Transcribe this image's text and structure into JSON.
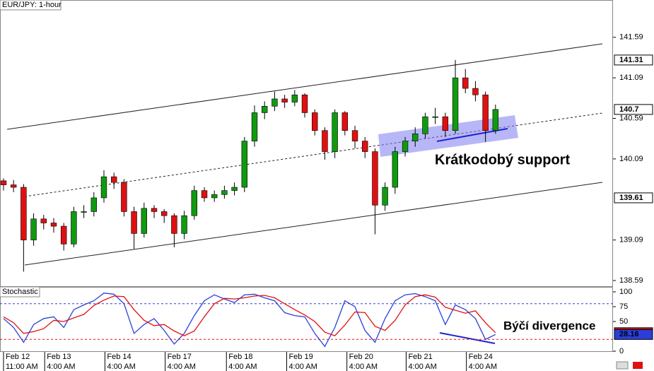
{
  "chart_data": [
    {
      "type": "candlestick",
      "title": "EUR/JPY: 1-hour",
      "open": [
        139.82,
        139.77,
        139.74,
        139.09,
        139.35,
        139.3,
        139.26,
        139.04,
        139.44,
        139.44,
        139.61,
        139.87,
        139.8,
        139.44,
        139.17,
        139.48,
        139.44,
        139.39,
        139.17,
        139.39,
        139.7,
        139.61,
        139.65,
        139.7,
        139.74,
        140.31,
        140.66,
        140.74,
        140.83,
        140.79,
        140.88,
        140.66,
        140.44,
        140.18,
        140.66,
        140.44,
        140.31,
        140.18,
        139.52,
        139.74,
        140.18,
        140.31,
        140.4,
        140.61,
        140.61,
        140.44,
        141.09,
        140.96,
        140.88,
        140.44
      ],
      "high": [
        139.85,
        139.83,
        139.78,
        139.42,
        139.4,
        139.36,
        139.3,
        139.5,
        139.52,
        139.68,
        139.95,
        139.92,
        139.84,
        139.5,
        139.55,
        139.52,
        139.47,
        139.42,
        139.45,
        139.76,
        139.74,
        139.7,
        139.76,
        139.8,
        140.36,
        140.75,
        140.8,
        140.92,
        140.88,
        140.94,
        140.9,
        140.7,
        140.48,
        140.7,
        140.68,
        140.5,
        140.36,
        140.22,
        139.8,
        140.24,
        140.36,
        140.48,
        140.66,
        140.72,
        140.66,
        141.31,
        141.2,
        141.05,
        140.92,
        140.76
      ],
      "low": [
        139.7,
        139.68,
        138.7,
        139.02,
        139.22,
        139.18,
        138.96,
        139.0,
        139.36,
        139.38,
        139.55,
        139.72,
        139.38,
        138.98,
        139.12,
        139.36,
        139.3,
        139.0,
        139.1,
        139.34,
        139.56,
        139.56,
        139.6,
        139.64,
        139.68,
        140.24,
        140.58,
        140.68,
        140.72,
        140.74,
        140.6,
        140.38,
        140.08,
        140.1,
        140.38,
        140.22,
        140.1,
        139.16,
        139.45,
        139.66,
        140.12,
        140.24,
        140.34,
        140.52,
        140.36,
        140.4,
        140.9,
        140.8,
        140.3,
        140.4
      ],
      "close": [
        139.77,
        139.74,
        139.09,
        139.35,
        139.3,
        139.26,
        139.04,
        139.44,
        139.44,
        139.61,
        139.87,
        139.8,
        139.44,
        139.17,
        139.48,
        139.44,
        139.39,
        139.17,
        139.39,
        139.7,
        139.61,
        139.65,
        139.7,
        139.74,
        140.31,
        140.66,
        140.74,
        140.83,
        140.79,
        140.88,
        140.66,
        140.44,
        140.18,
        140.66,
        140.44,
        140.31,
        140.18,
        139.52,
        139.74,
        140.18,
        140.31,
        140.4,
        140.61,
        140.61,
        140.44,
        141.09,
        140.96,
        140.88,
        140.44,
        140.7
      ],
      "up_color": "#109a10",
      "down_color": "#e01010",
      "xlim": [
        -0.35,
        60.7
      ],
      "ylim": [
        138.52,
        142.05
      ],
      "yticks": [
        138.59,
        139.09,
        140.09,
        140.59,
        141.09,
        141.59
      ],
      "xticks": [
        {
          "value": 0,
          "label": "Feb 12",
          "time": "11:00 AM"
        },
        {
          "value": 4.1,
          "label": "Feb 13",
          "time": "4:00 AM"
        },
        {
          "value": 10.1,
          "label": "Feb 14",
          "time": "4:00 AM"
        },
        {
          "value": 16.1,
          "label": "Feb 17",
          "time": "4:00 AM"
        },
        {
          "value": 22.2,
          "label": "Feb 18",
          "time": "4:00 AM"
        },
        {
          "value": 28.2,
          "label": "Feb 19",
          "time": "4:00 AM"
        },
        {
          "value": 34.2,
          "label": "Feb 20",
          "time": "4:00 AM"
        },
        {
          "value": 40.1,
          "label": "Feb 21",
          "time": "4:00 AM"
        },
        {
          "value": 46.1,
          "label": "Feb 24",
          "time": "4:00 AM"
        }
      ],
      "price_markers": [
        141.31,
        139.61
      ],
      "annotation": "Krátkodobý support"
    },
    {
      "type": "line",
      "title": "Stochastic",
      "series": [
        {
          "color": "#2b3fd8",
          "values": [
            55,
            40,
            15,
            45,
            55,
            58,
            40,
            70,
            78,
            85,
            98,
            96,
            80,
            30,
            45,
            55,
            35,
            12,
            30,
            60,
            85,
            95,
            88,
            82,
            95,
            96,
            90,
            85,
            65,
            60,
            58,
            30,
            8,
            40,
            85,
            75,
            35,
            15,
            55,
            85,
            95,
            97,
            92,
            85,
            45,
            78,
            70,
            55,
            20,
            28.16
          ]
        },
        {
          "color": "#e01010",
          "values": [
            58,
            48,
            30,
            33,
            38,
            52,
            50,
            56,
            62,
            77,
            86,
            93,
            92,
            70,
            52,
            43,
            45,
            34,
            26,
            34,
            58,
            80,
            89,
            88,
            90,
            93,
            94,
            90,
            80,
            70,
            61,
            50,
            32,
            26,
            44,
            66,
            65,
            42,
            35,
            52,
            78,
            92,
            95,
            91,
            74,
            69,
            64,
            68,
            48,
            31.15
          ]
        }
      ],
      "xlim": [
        -0.35,
        60.7
      ],
      "ylim": [
        -1.2,
        108.3
      ],
      "yticks": [
        0,
        50,
        75,
        100
      ],
      "levels": [
        {
          "value": 80,
          "color": "#2b3fd8"
        },
        {
          "value": 20,
          "color": "#e01010"
        }
      ],
      "annotation": "Býčí divergence"
    }
  ]
}
